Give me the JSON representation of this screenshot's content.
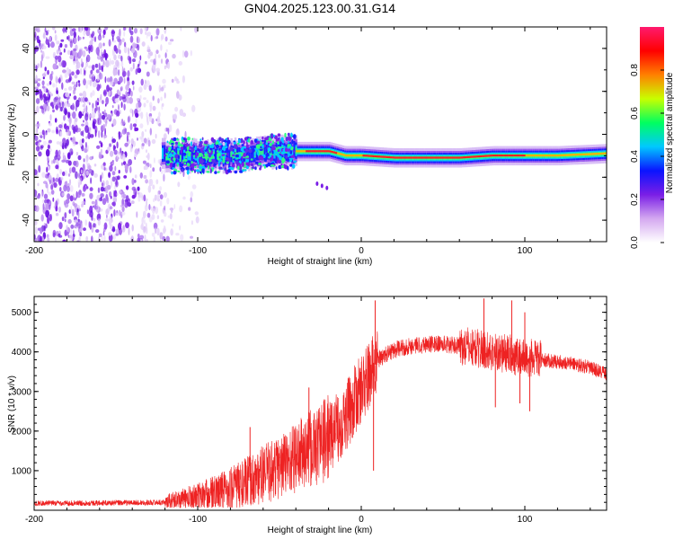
{
  "title": "GN04.2025.123.00.31.G14",
  "chart_data": [
    {
      "type": "heatmap",
      "xlabel": "Height of straight line (km)",
      "ylabel": "Frequency (Hz)",
      "xlim": [
        -200,
        150
      ],
      "ylim": [
        -50,
        50
      ],
      "xticks": [
        -200,
        -100,
        0,
        100
      ],
      "yticks": [
        -40,
        -20,
        0,
        20,
        40
      ],
      "ridge": {
        "name": "carrier trace",
        "x": [
          -120,
          -100,
          -80,
          -60,
          -50,
          -40,
          -30,
          -20,
          -10,
          0,
          20,
          40,
          60,
          80,
          100,
          120,
          150
        ],
        "freq": [
          -10,
          -10,
          -10,
          -9,
          -8,
          -8,
          -8,
          -8,
          -10,
          -10,
          -11,
          -11,
          -11,
          -10,
          -10,
          -10,
          -9
        ]
      },
      "noise_region_x": [
        -200,
        -115
      ],
      "colorbar": {
        "label": "Normalized spectral amplitude",
        "range": [
          0,
          1
        ],
        "ticks": [
          0,
          0.2,
          0.4,
          0.6,
          0.8
        ],
        "tick_labels": [
          "0.0",
          "0.2",
          "0.4",
          "0.6",
          "0.8"
        ],
        "colormap": [
          "#ffffff",
          "#d4a8f0",
          "#7a1ee6",
          "#0a14ff",
          "#00c8ff",
          "#00ff60",
          "#c8ff00",
          "#ff8000",
          "#ff0000",
          "#ff1a6e"
        ]
      }
    },
    {
      "type": "line",
      "xlabel": "Height of straight line (km)",
      "ylabel": "SNR (10 * v/v)",
      "xlim": [
        -200,
        150
      ],
      "ylim": [
        0,
        5400
      ],
      "xticks": [
        -200,
        -100,
        0,
        100
      ],
      "yticks": [
        1000,
        2000,
        3000,
        4000,
        5000
      ],
      "line_color": "#ee2222",
      "series": [
        {
          "x": [
            -200,
            -180,
            -160,
            -140,
            -120,
            -110,
            -100,
            -90,
            -80,
            -70,
            -60,
            -50,
            -40,
            -30,
            -20,
            -10,
            -5,
            0,
            5,
            10,
            20,
            30,
            40,
            50,
            60,
            70,
            80,
            90,
            100,
            110,
            120,
            130,
            140,
            150
          ],
          "values": [
            180,
            180,
            185,
            190,
            200,
            250,
            330,
            420,
            560,
            700,
            900,
            1100,
            1350,
            1550,
            1850,
            2300,
            2700,
            3050,
            3400,
            3800,
            4050,
            4150,
            4200,
            4200,
            4150,
            4100,
            4000,
            3950,
            3850,
            3800,
            3750,
            3700,
            3600,
            3450
          ]
        }
      ],
      "spikes": [
        {
          "x": 8.5,
          "value": 5300
        },
        {
          "x": 7.5,
          "value": 1000
        },
        {
          "x": -32,
          "value": 3100
        },
        {
          "x": -68,
          "value": 2100
        },
        {
          "x": 75,
          "value": 5350
        },
        {
          "x": 82,
          "value": 2600
        },
        {
          "x": 92,
          "value": 5300
        },
        {
          "x": 97,
          "value": 2700
        },
        {
          "x": 100,
          "value": 5000
        },
        {
          "x": 103,
          "value": 2500
        }
      ]
    }
  ]
}
